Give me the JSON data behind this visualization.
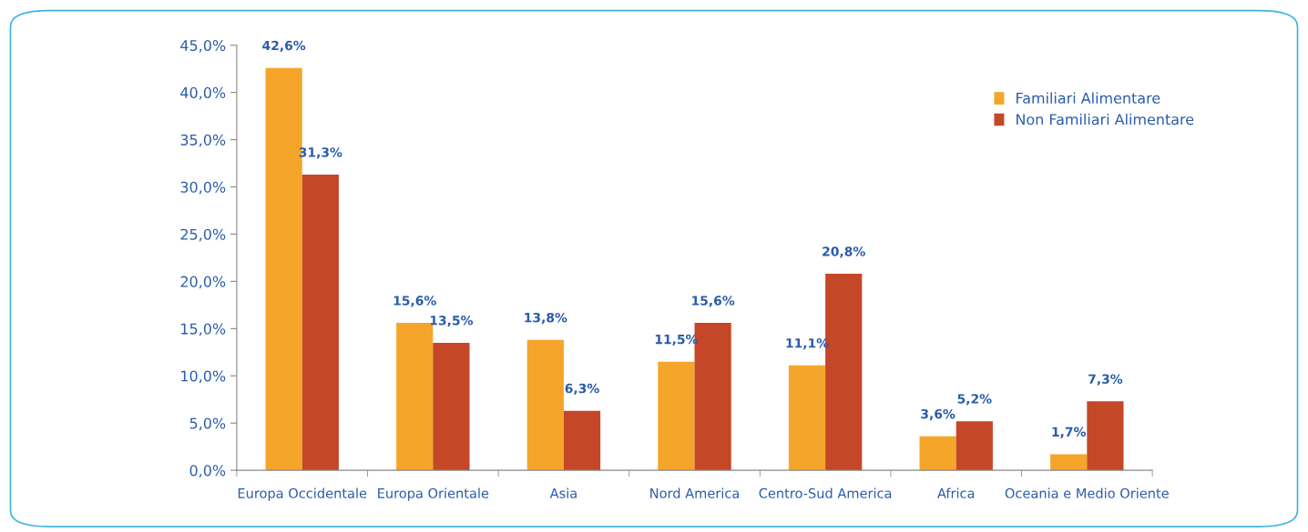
{
  "chart_data": {
    "type": "bar",
    "categories": [
      "Europa Occidentale",
      "Europa Orientale",
      "Asia",
      "Nord America",
      "Centro-Sud America",
      "Africa",
      "Oceania e Medio Oriente"
    ],
    "series": [
      {
        "name": "Familiari Alimentare",
        "color": "#f5a52a",
        "values": [
          42.6,
          15.6,
          13.8,
          11.5,
          11.1,
          3.6,
          1.7
        ],
        "value_labels": [
          "42,6%",
          "15,6%",
          "13,8%",
          "11,5%",
          "11,1%",
          "3,6%",
          "1,7%"
        ]
      },
      {
        "name": "Non Familiari Alimentare",
        "color": "#c44727",
        "values": [
          31.3,
          13.5,
          6.3,
          15.6,
          20.8,
          5.2,
          7.3
        ],
        "value_labels": [
          "31,3%",
          "13,5%",
          "6,3%",
          "15,6%",
          "20,8%",
          "5,2%",
          "7,3%"
        ]
      }
    ],
    "ylim": [
      0,
      45
    ],
    "yticks": [
      {
        "value": 0,
        "label": "0,0%"
      },
      {
        "value": 5,
        "label": "5,0%"
      },
      {
        "value": 10,
        "label": "10,0%"
      },
      {
        "value": 15,
        "label": "15,0%"
      },
      {
        "value": 20,
        "label": "20,0%"
      },
      {
        "value": 25,
        "label": "25,0%"
      },
      {
        "value": 30,
        "label": "30,0%"
      },
      {
        "value": 35,
        "label": "35,0%"
      },
      {
        "value": 40,
        "label": "40,0%"
      },
      {
        "value": 45,
        "label": "45,0%"
      }
    ],
    "grid": false,
    "legend": "top right"
  }
}
